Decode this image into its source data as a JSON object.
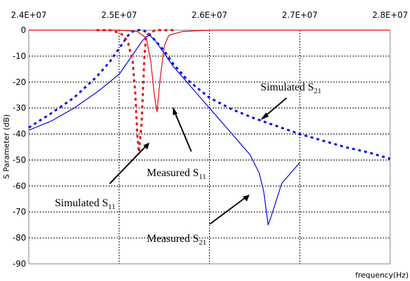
{
  "chart_data": {
    "type": "line",
    "title": "",
    "xlabel": "frequency(Hz)",
    "ylabel": "S Parameter (dB)",
    "xlim": [
      24000000,
      28000000
    ],
    "ylim": [
      -90,
      0
    ],
    "x_tick_labels": [
      "2.4E+07",
      "2.5E+07",
      "2.6E+07",
      "2.7E+07",
      "2.8E+07"
    ],
    "x_ticks": [
      24000000,
      25000000,
      26000000,
      27000000,
      28000000
    ],
    "y_tick_labels": [
      "0",
      "-10",
      "-20",
      "-30",
      "-40",
      "-50",
      "-60",
      "-70",
      "-80",
      "-90"
    ],
    "y_ticks": [
      0,
      -10,
      -20,
      -30,
      -40,
      -50,
      -60,
      -70,
      -80,
      -90
    ],
    "grid": true,
    "annotations": [
      {
        "base": "Simulated S",
        "sub": "21"
      },
      {
        "base": "Measured S",
        "sub": "11"
      },
      {
        "base": "Simulated S",
        "sub": "11"
      },
      {
        "base": "Measured S",
        "sub": "21"
      }
    ],
    "series": [
      {
        "color": "#0000ee",
        "style": "dotted",
        "x": [
          24000000,
          24250000,
          24500000,
          24750000,
          24900000,
          25000000,
          25060000,
          25100000,
          25150000,
          25200000,
          25260000,
          25320000,
          25400000,
          25500000,
          25600000,
          25750000,
          26000000,
          26250000,
          26500000,
          26750000,
          27000000,
          27250000,
          27500000,
          27750000,
          28000000
        ],
        "y": [
          -37.5,
          -32,
          -26,
          -18,
          -12,
          -7,
          -4,
          -2,
          -0.5,
          0,
          0,
          -1,
          -4,
          -8,
          -13,
          -19,
          -26,
          -30.5,
          -34,
          -37,
          -40,
          -42.5,
          -45,
          -47,
          -49.5
        ]
      },
      {
        "color": "#0000ee",
        "style": "solid",
        "x": [
          24000000,
          24250000,
          24500000,
          24750000,
          25000000,
          25100000,
          25200000,
          25260000,
          25300000,
          25340000,
          25400000,
          25500000,
          25600000,
          25750000,
          25900000,
          26050000,
          26200000,
          26350000,
          26450000,
          26550000,
          26600000,
          26650000,
          26700000,
          26800000,
          26900000,
          27000000
        ],
        "y": [
          -38.5,
          -35,
          -30,
          -24,
          -17,
          -12,
          -7,
          -4,
          -2.5,
          -2,
          -4,
          -9,
          -14,
          -20,
          -26,
          -32,
          -38,
          -44,
          -48,
          -55,
          -62,
          -75,
          -70,
          -59,
          -55,
          -51
        ]
      },
      {
        "color": "#ee0000",
        "style": "dotted",
        "x": [
          24750000,
          24900000,
          25000000,
          25050000,
          25100000,
          25150000,
          25180000,
          25200000,
          25220000,
          25250000,
          25280000,
          25300000,
          25400000,
          25600000
        ],
        "y": [
          0,
          0,
          -1,
          -2,
          -5,
          -12,
          -25,
          -40,
          -47,
          -35,
          -10,
          -2,
          0,
          0
        ]
      },
      {
        "color": "#ee0000",
        "style": "solid",
        "x": [
          24000000,
          25000000,
          25200000,
          25300000,
          25350000,
          25390000,
          25420000,
          25450000,
          25500000,
          25550000,
          25700000,
          26000000,
          27000000,
          28000000
        ],
        "y": [
          0,
          0,
          -0.5,
          -3,
          -12,
          -25,
          -31.5,
          -20,
          -6,
          -2,
          -0.5,
          0,
          0,
          0
        ]
      }
    ]
  }
}
